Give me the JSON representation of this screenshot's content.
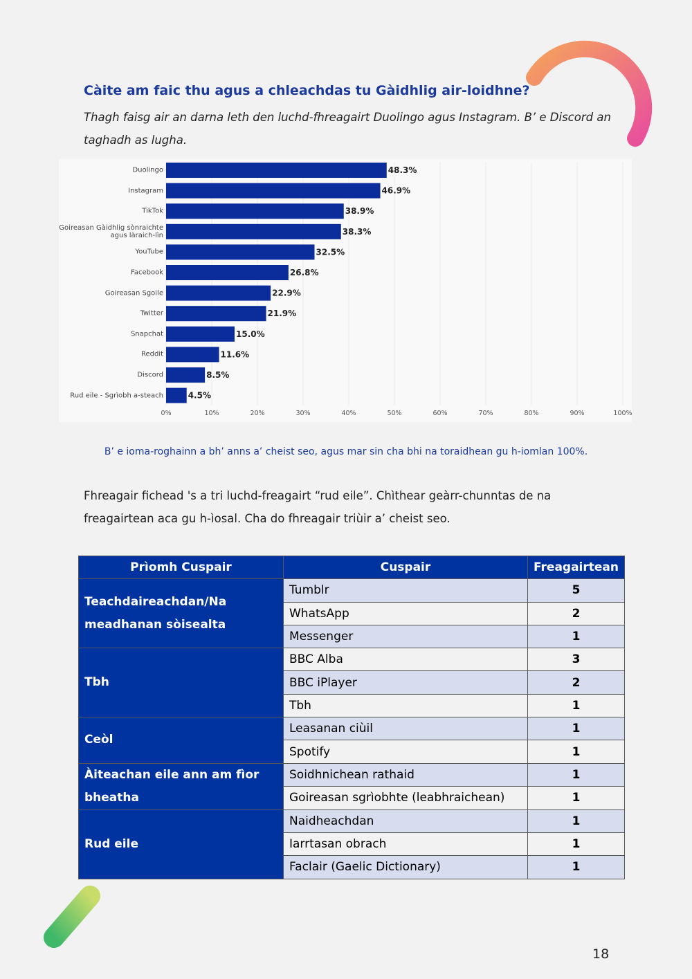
{
  "heading": "Càite am faic thu agus a chleachdas tu Gàidhlig air-loidhne?",
  "intro": "Thagh faisg air an darna leth den luchd-fhreagairt Duolingo agus Instagram. B’ e Discord an taghadh as lugha.",
  "chart_data": {
    "type": "bar",
    "orientation": "horizontal",
    "categories": [
      "Duolingo",
      "Instagram",
      "TikTok",
      "Goireasan Gàidhlig sònraichte agus làraich-lìn",
      "YouTube",
      "Facebook",
      "Goireasan Sgoile",
      "Twitter",
      "Snapchat",
      "Reddit",
      "Discord",
      "Rud eile - Sgrìobh a-steach"
    ],
    "values": [
      48.3,
      46.9,
      38.9,
      38.3,
      32.5,
      26.8,
      22.9,
      21.9,
      15.0,
      11.6,
      8.5,
      4.5
    ],
    "value_labels": [
      "48.3%",
      "46.9%",
      "38.9%",
      "38.3%",
      "32.5%",
      "26.8%",
      "22.9%",
      "21.9%",
      "15.0%",
      "11.6%",
      "8.5%",
      "4.5%"
    ],
    "color": "#0b2d9c",
    "xlim": [
      0,
      100
    ],
    "xticks": [
      {
        "value": 0,
        "label": "0%"
      },
      {
        "value": 10,
        "label": "10%"
      },
      {
        "value": 20,
        "label": "20%"
      },
      {
        "value": 30,
        "label": "30%"
      },
      {
        "value": 40,
        "label": "40%"
      },
      {
        "value": 50,
        "label": "50%"
      },
      {
        "value": 60,
        "label": "60%"
      },
      {
        "value": 70,
        "label": "70%"
      },
      {
        "value": 80,
        "label": "80%"
      },
      {
        "value": 90,
        "label": "90%"
      },
      {
        "value": 100,
        "label": "100%"
      }
    ],
    "grid": true
  },
  "note": "B’ e ioma-roghainn a bh’ anns a’ cheist seo, agus mar sin cha bhi na toraidhean gu h-iomlan 100%.",
  "paragraph": "Fhreagair fichead 's a tri luchd-freagairt “rud eile”. Chìthear geàrr-chunntas de na freagairtean aca gu h-ìosal. Cha do fhreagair triùir a’ cheist seo.",
  "table": {
    "header": [
      "Prìomh Cuspair",
      "Cuspair",
      "Freagairtean"
    ],
    "groups": [
      {
        "label": "Teachdaireachdan/Na meadhanan sòisealta",
        "rows": [
          [
            "Tumblr",
            5
          ],
          [
            "WhatsApp",
            2
          ],
          [
            "Messenger",
            1
          ]
        ]
      },
      {
        "label": "Tbh",
        "rows": [
          [
            "BBC Alba",
            3
          ],
          [
            "BBC iPlayer",
            2
          ],
          [
            "Tbh",
            1
          ]
        ]
      },
      {
        "label": "Ceòl",
        "rows": [
          [
            "Leasanan ciùil",
            1
          ],
          [
            "Spotify",
            1
          ]
        ]
      },
      {
        "label": "Àiteachan eile ann am fìor bheatha",
        "rows": [
          [
            "Soidhnichean rathaid",
            1
          ],
          [
            "Goireasan sgrìobhte (leabhraichean)",
            1
          ]
        ]
      },
      {
        "label": "Rud eile",
        "rows": [
          [
            "Naidheachdan",
            1
          ],
          [
            "Iarrtasan obrach",
            1
          ],
          [
            "Faclair (Gaelic Dictionary)",
            1
          ]
        ]
      }
    ]
  },
  "page_number": 18
}
